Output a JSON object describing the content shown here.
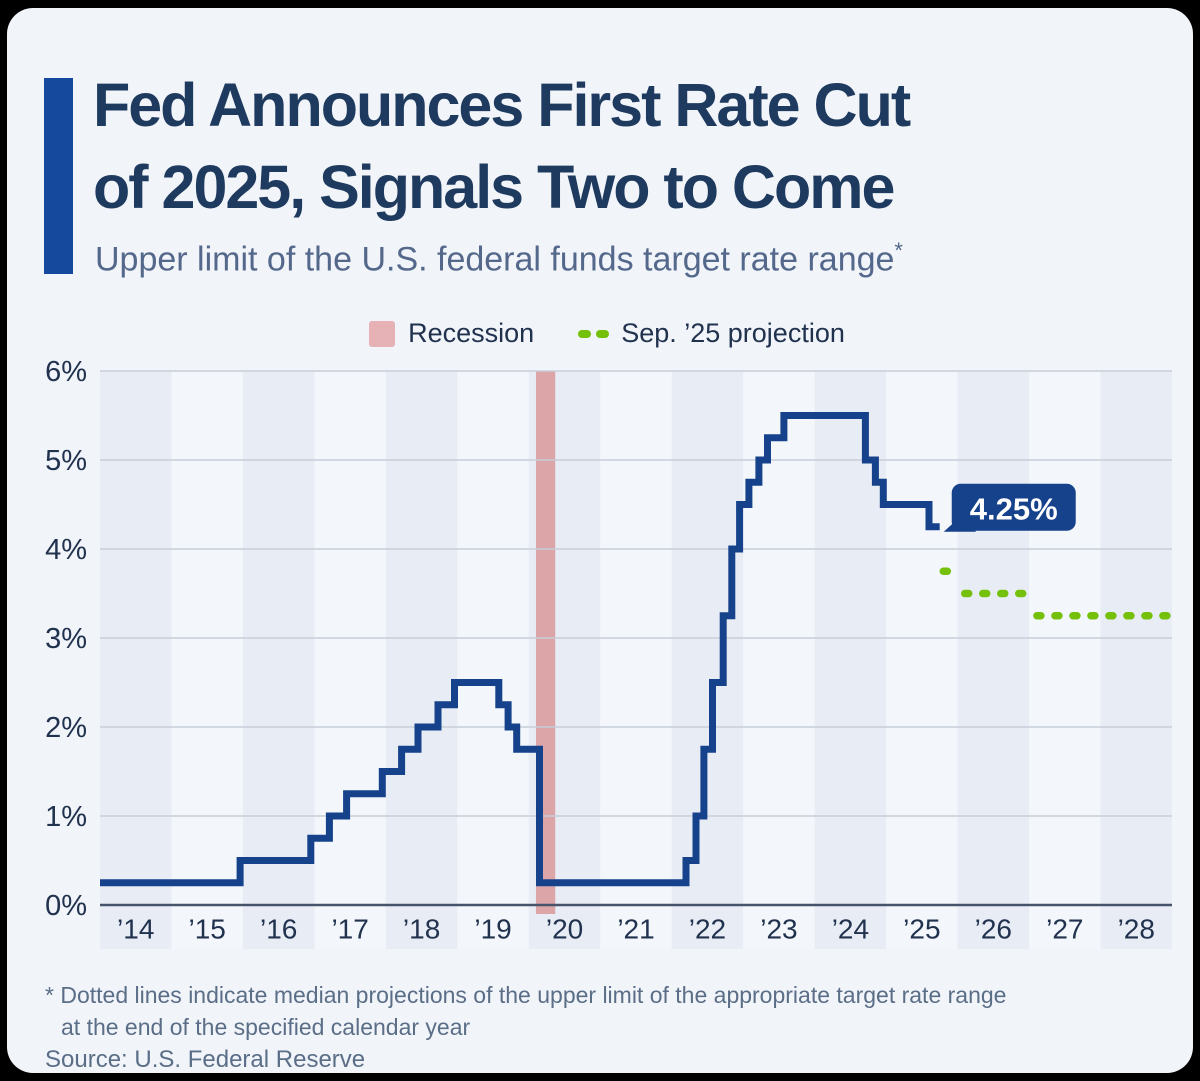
{
  "header": {
    "title_line1": "Fed Announces First Rate Cut",
    "title_line2": "of 2025, Signals Two to Come",
    "subtitle": "Upper limit of the U.S. federal funds target rate range",
    "subtitle_footnote_marker": "*"
  },
  "legend": {
    "recession_label": "Recession",
    "projection_label": "Sep. ’25 projection"
  },
  "footnote": {
    "line1": "* Dotted lines indicate median projections of the upper limit of the appropriate target rate range",
    "line2": "at the end of the specified calendar year"
  },
  "source": "Source: U.S. Federal Reserve",
  "colors": {
    "accent_bar": "#14499d",
    "title_text": "#1e3a5e",
    "subtitle_text": "#54688b",
    "card_bg": "#f1f4f9",
    "stripe_dark": "#e8edf5",
    "stripe_light": "#f3f6fa",
    "grid": "#c7cdd9",
    "axis": "#46536b",
    "tick_text": "#21324f",
    "rate_line": "#15428b",
    "projection_green": "#74c00b",
    "recession_pink": "#dca6a9",
    "legend_swatch_pink": "#e7b2b5",
    "callout_bg": "#15428b",
    "callout_text": "#ffffff"
  },
  "chart_data": {
    "type": "line",
    "subtype": "step",
    "title": "Upper limit of the U.S. federal funds target rate range",
    "x_tick_labels": [
      "’14",
      "’15",
      "’16",
      "’17",
      "’18",
      "’19",
      "’20",
      "’21",
      "’22",
      "’23",
      "’24",
      "’25",
      "’26",
      "’27",
      "’28"
    ],
    "y_tick_labels": [
      "0%",
      "1%",
      "2%",
      "3%",
      "4%",
      "5%",
      "6%"
    ],
    "xlim": [
      2014,
      2029
    ],
    "ylim": [
      0,
      6
    ],
    "grid": "horizontal",
    "legend_position": "top-center",
    "series": [
      {
        "name": "Federal funds target rate (upper limit)",
        "type": "step-line",
        "color": "#15428b",
        "points": [
          [
            2014.0,
            0.25
          ],
          [
            2015.96,
            0.5
          ],
          [
            2016.95,
            0.75
          ],
          [
            2017.21,
            1.0
          ],
          [
            2017.45,
            1.25
          ],
          [
            2017.95,
            1.5
          ],
          [
            2018.22,
            1.75
          ],
          [
            2018.45,
            2.0
          ],
          [
            2018.73,
            2.25
          ],
          [
            2018.96,
            2.5
          ],
          [
            2019.58,
            2.25
          ],
          [
            2019.71,
            2.0
          ],
          [
            2019.83,
            1.75
          ],
          [
            2020.15,
            0.25
          ],
          [
            2022.2,
            0.5
          ],
          [
            2022.34,
            1.0
          ],
          [
            2022.45,
            1.75
          ],
          [
            2022.57,
            2.5
          ],
          [
            2022.72,
            3.25
          ],
          [
            2022.84,
            4.0
          ],
          [
            2022.95,
            4.5
          ],
          [
            2023.08,
            4.75
          ],
          [
            2023.22,
            5.0
          ],
          [
            2023.34,
            5.25
          ],
          [
            2023.57,
            5.5
          ],
          [
            2024.71,
            5.0
          ],
          [
            2024.85,
            4.75
          ],
          [
            2024.96,
            4.5
          ],
          [
            2025.6,
            4.25
          ]
        ],
        "end_x": 2025.75
      },
      {
        "name": "Sep. ’25 projection (median, year-end)",
        "type": "dotted-step",
        "color": "#74c00b",
        "segments": [
          {
            "x1": 2025.73,
            "x2": 2025.98,
            "y": 3.75
          },
          {
            "x1": 2026.03,
            "x2": 2026.98,
            "y": 3.5
          },
          {
            "x1": 2027.04,
            "x2": 2028.99,
            "y": 3.25
          }
        ]
      }
    ],
    "recession_band": {
      "x1": 2020.1,
      "x2": 2020.37,
      "color": "#dca6a9"
    },
    "annotation": {
      "x": 2025.75,
      "y": 4.25,
      "label": "4.25%"
    }
  }
}
